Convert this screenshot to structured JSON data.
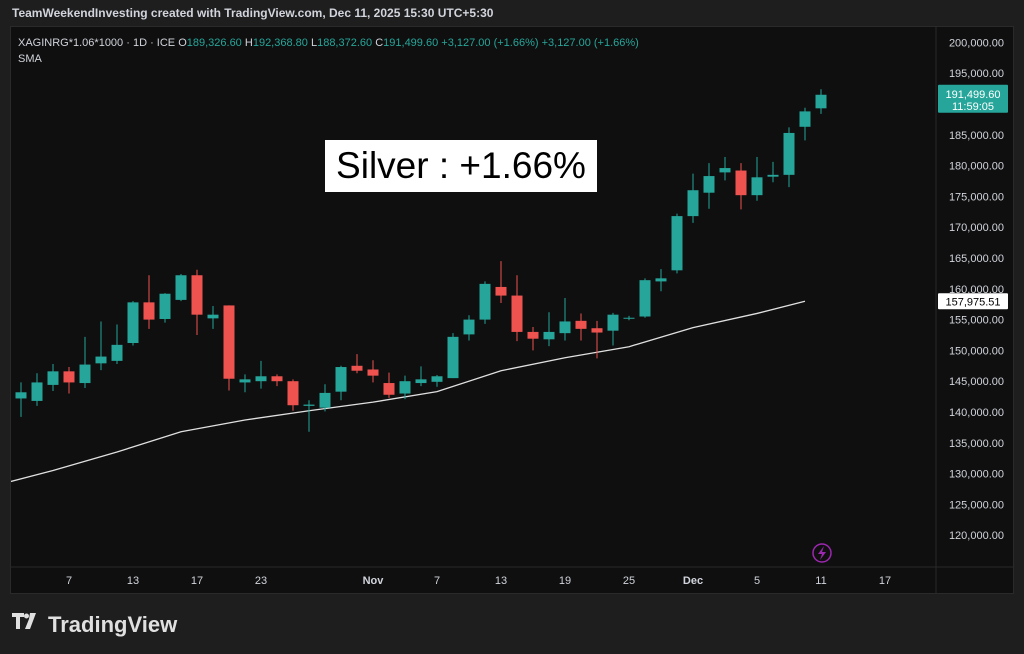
{
  "header": {
    "title": "TeamWeekendInvesting created with TradingView.com, Dec 11, 2025 15:30 UTC+5:30"
  },
  "legend": {
    "symbol": "XAGINRG*1.06*1000 · 1D · ICE",
    "o_label": "O",
    "o_value": "189,326.60",
    "h_label": "H",
    "h_value": "192,368.80",
    "l_label": "L",
    "l_value": "188,372.60",
    "c_label": "C",
    "c_value": "191,499.60",
    "change": "+3,127.00 (+1.66%)",
    "change2": "+3,127.00 (+1.66%)",
    "indicator": "SMA"
  },
  "annotation": {
    "text": "Silver : +1.66%"
  },
  "price_labels": {
    "last_price": "191,499.60",
    "countdown": "11:59:05",
    "sma_value": "157,975.51"
  },
  "footer": {
    "brand": "TradingView"
  },
  "colors": {
    "up": "#26a69a",
    "down": "#ef5350",
    "sma": "#e0e0e0",
    "background": "#0f0f0f"
  },
  "chart_data": {
    "type": "candlestick",
    "y_ticks": [
      "120,000.00",
      "125,000.00",
      "130,000.00",
      "135,000.00",
      "140,000.00",
      "145,000.00",
      "150,000.00",
      "155,000.00",
      "160,000.00",
      "165,000.00",
      "170,000.00",
      "175,000.00",
      "180,000.00",
      "185,000.00",
      "190,000.00",
      "195,000.00",
      "200,000.00"
    ],
    "y_tick_values": [
      120000,
      125000,
      130000,
      135000,
      140000,
      145000,
      150000,
      155000,
      160000,
      165000,
      170000,
      175000,
      180000,
      185000,
      190000,
      195000,
      200000
    ],
    "ylim": [
      115000,
      202500
    ],
    "x_labels": [
      {
        "label": "7",
        "idx": 3
      },
      {
        "label": "13",
        "idx": 7
      },
      {
        "label": "17",
        "idx": 11
      },
      {
        "label": "23",
        "idx": 15
      },
      {
        "label": "Nov",
        "idx": 22
      },
      {
        "label": "7",
        "idx": 26
      },
      {
        "label": "13",
        "idx": 30
      },
      {
        "label": "19",
        "idx": 34
      },
      {
        "label": "25",
        "idx": 38
      },
      {
        "label": "Dec",
        "idx": 42
      },
      {
        "label": "5",
        "idx": 46
      },
      {
        "label": "11",
        "idx": 50
      },
      {
        "label": "17",
        "idx": 54
      }
    ],
    "candles": [
      {
        "o": 142200,
        "h": 144800,
        "l": 139200,
        "c": 143200
      },
      {
        "o": 141800,
        "h": 146300,
        "l": 141000,
        "c": 144800
      },
      {
        "o": 144400,
        "h": 147800,
        "l": 143400,
        "c": 146600
      },
      {
        "o": 146600,
        "h": 147300,
        "l": 143000,
        "c": 144800
      },
      {
        "o": 144700,
        "h": 152200,
        "l": 143900,
        "c": 147700
      },
      {
        "o": 147900,
        "h": 154700,
        "l": 146800,
        "c": 149000
      },
      {
        "o": 148300,
        "h": 154200,
        "l": 147800,
        "c": 150900
      },
      {
        "o": 151200,
        "h": 158000,
        "l": 150800,
        "c": 157800
      },
      {
        "o": 157800,
        "h": 162200,
        "l": 153500,
        "c": 155000
      },
      {
        "o": 155100,
        "h": 159300,
        "l": 154500,
        "c": 159200
      },
      {
        "o": 158200,
        "h": 162400,
        "l": 158000,
        "c": 162200
      },
      {
        "o": 162200,
        "h": 163100,
        "l": 152500,
        "c": 155800
      },
      {
        "o": 155200,
        "h": 157200,
        "l": 153500,
        "c": 155800
      },
      {
        "o": 157300,
        "h": 157300,
        "l": 143500,
        "c": 145400
      },
      {
        "o": 144800,
        "h": 146100,
        "l": 143200,
        "c": 145300
      },
      {
        "o": 145000,
        "h": 148300,
        "l": 143800,
        "c": 145800
      },
      {
        "o": 145800,
        "h": 146100,
        "l": 144200,
        "c": 145000
      },
      {
        "o": 145000,
        "h": 145300,
        "l": 140200,
        "c": 141100
      },
      {
        "o": 141000,
        "h": 141900,
        "l": 136800,
        "c": 141200
      },
      {
        "o": 140700,
        "h": 144500,
        "l": 140100,
        "c": 143100
      },
      {
        "o": 143300,
        "h": 147500,
        "l": 141900,
        "c": 147300
      },
      {
        "o": 147500,
        "h": 149400,
        "l": 146300,
        "c": 146700
      },
      {
        "o": 146900,
        "h": 148400,
        "l": 144800,
        "c": 145900
      },
      {
        "o": 144700,
        "h": 146400,
        "l": 142300,
        "c": 142800
      },
      {
        "o": 143000,
        "h": 145900,
        "l": 142100,
        "c": 145000
      },
      {
        "o": 144700,
        "h": 147400,
        "l": 144200,
        "c": 145300
      },
      {
        "o": 144900,
        "h": 146000,
        "l": 144100,
        "c": 145800
      },
      {
        "o": 145500,
        "h": 152800,
        "l": 145500,
        "c": 152200
      },
      {
        "o": 152600,
        "h": 155700,
        "l": 151600,
        "c": 155000
      },
      {
        "o": 155000,
        "h": 161200,
        "l": 154300,
        "c": 160800
      },
      {
        "o": 160300,
        "h": 164500,
        "l": 157700,
        "c": 158900
      },
      {
        "o": 158900,
        "h": 162200,
        "l": 151500,
        "c": 153000
      },
      {
        "o": 153000,
        "h": 153800,
        "l": 150000,
        "c": 151900
      },
      {
        "o": 151800,
        "h": 156200,
        "l": 150700,
        "c": 153000
      },
      {
        "o": 152800,
        "h": 158500,
        "l": 151600,
        "c": 154700
      },
      {
        "o": 154800,
        "h": 156000,
        "l": 151600,
        "c": 153500
      },
      {
        "o": 153600,
        "h": 154800,
        "l": 148700,
        "c": 152900
      },
      {
        "o": 153200,
        "h": 156100,
        "l": 150800,
        "c": 155800
      },
      {
        "o": 155200,
        "h": 155600,
        "l": 154900,
        "c": 155300
      },
      {
        "o": 155500,
        "h": 161700,
        "l": 155300,
        "c": 161400
      },
      {
        "o": 161200,
        "h": 163200,
        "l": 159600,
        "c": 161700
      },
      {
        "o": 163000,
        "h": 172200,
        "l": 162500,
        "c": 171800
      },
      {
        "o": 171800,
        "h": 178700,
        "l": 170700,
        "c": 176000
      },
      {
        "o": 175600,
        "h": 180400,
        "l": 173000,
        "c": 178300
      },
      {
        "o": 178900,
        "h": 181400,
        "l": 177600,
        "c": 179600
      },
      {
        "o": 179200,
        "h": 180400,
        "l": 172900,
        "c": 175200
      },
      {
        "o": 175200,
        "h": 181400,
        "l": 174300,
        "c": 178100
      },
      {
        "o": 178200,
        "h": 180600,
        "l": 177300,
        "c": 178500
      },
      {
        "o": 178500,
        "h": 186200,
        "l": 176500,
        "c": 185300
      },
      {
        "o": 186300,
        "h": 189400,
        "l": 184100,
        "c": 188800
      },
      {
        "o": 189300,
        "h": 192400,
        "l": 188400,
        "c": 191500
      }
    ],
    "sma": [
      {
        "idx": -10,
        "v": 123100
      },
      {
        "idx": -6,
        "v": 125600
      },
      {
        "idx": -2,
        "v": 127800
      },
      {
        "idx": 2,
        "v": 130500
      },
      {
        "idx": 6,
        "v": 133500
      },
      {
        "idx": 10,
        "v": 136800
      },
      {
        "idx": 14,
        "v": 138700
      },
      {
        "idx": 18,
        "v": 140200
      },
      {
        "idx": 22,
        "v": 141600
      },
      {
        "idx": 26,
        "v": 143300
      },
      {
        "idx": 30,
        "v": 146700
      },
      {
        "idx": 34,
        "v": 148800
      },
      {
        "idx": 38,
        "v": 150600
      },
      {
        "idx": 42,
        "v": 153700
      },
      {
        "idx": 46,
        "v": 156000
      },
      {
        "idx": 49,
        "v": 157975.51
      }
    ]
  }
}
